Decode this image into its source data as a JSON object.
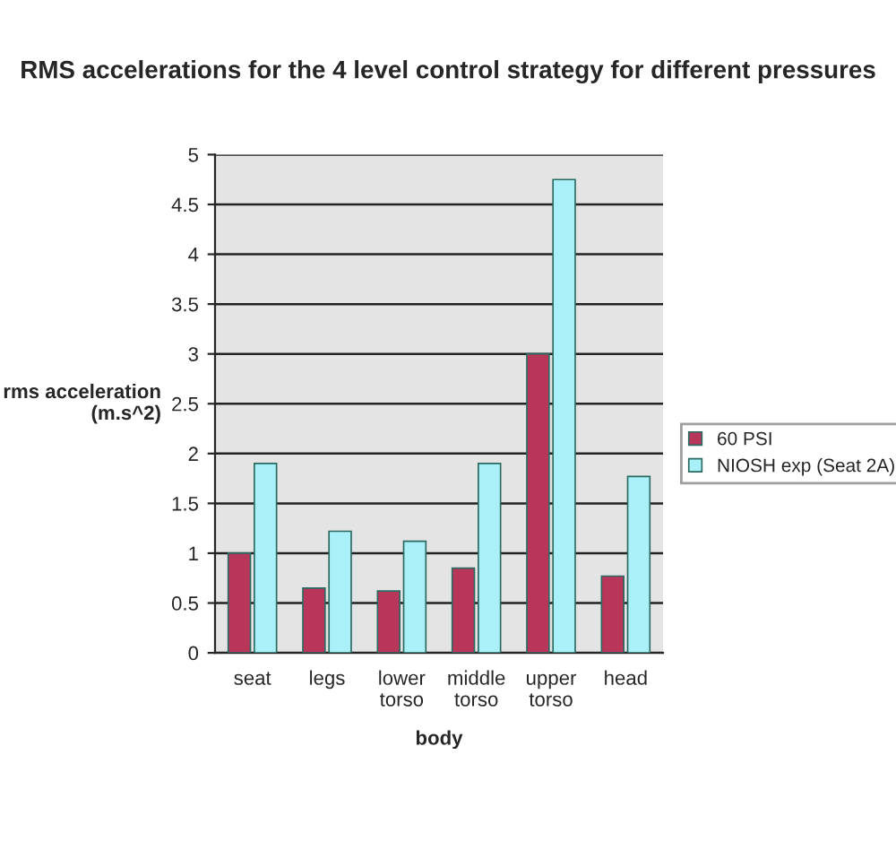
{
  "chart_data": {
    "type": "bar",
    "title": "RMS accelerations for the 4 level control strategy for different pressures",
    "xlabel": "body",
    "ylabel": "rms acceleration\n(m.s^2)",
    "categories": [
      "seat",
      "legs",
      "lower\ntorso",
      "middle\ntorso",
      "upper\ntorso",
      "head"
    ],
    "series": [
      {
        "name": "60 PSI",
        "color": "#b8365a",
        "values": [
          1.0,
          0.65,
          0.62,
          0.85,
          3.0,
          0.77
        ]
      },
      {
        "name": "NIOSH exp (Seat 2A)",
        "color": "#aaf0f8",
        "values": [
          1.9,
          1.22,
          1.12,
          1.9,
          4.75,
          1.77
        ]
      }
    ],
    "ylim": [
      0,
      5
    ],
    "yticks": [
      0,
      0.5,
      1,
      1.5,
      2,
      2.5,
      3,
      3.5,
      4,
      4.5,
      5
    ],
    "grid": "y",
    "legend": "right"
  }
}
